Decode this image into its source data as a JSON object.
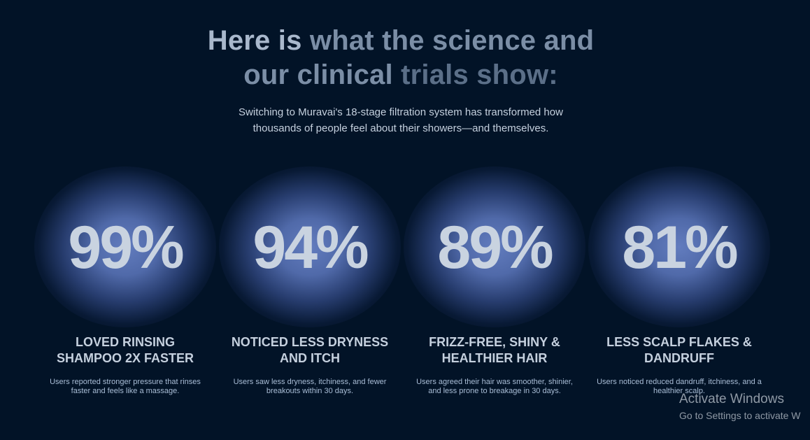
{
  "heading": {
    "line1_a": "Here is ",
    "line1_b": "what the science and",
    "line2_a": "our clinical ",
    "line2_b": "trials show:"
  },
  "subtitle": {
    "line1": "Switching to Muravai's 18-stage filtration system has transformed how",
    "line2": "thousands of people feel about their showers—and themselves."
  },
  "stats": [
    {
      "percent": "99%",
      "label_line1": "LOVED RINSING",
      "label_line2": "SHAMPOO 2X FASTER",
      "desc_line1": "Users reported stronger pressure that rinses",
      "desc_line2": "faster and feels like a massage."
    },
    {
      "percent": "94%",
      "label_line1": "NOTICED LESS DRYNESS",
      "label_line2": "AND ITCH",
      "desc_line1": "Users saw less dryness, itchiness, and fewer",
      "desc_line2": "breakouts within 30 days."
    },
    {
      "percent": "89%",
      "label_line1": "FRIZZ-FREE, SHINY &",
      "label_line2": "HEALTHIER HAIR",
      "desc_line1": "Users agreed their hair was smoother, shinier,",
      "desc_line2": "and less prone to breakage in 30 days."
    },
    {
      "percent": "81%",
      "label_line1": "LESS SCALP FLAKES &",
      "label_line2": "DANDRUFF",
      "desc_line1": "Users noticed reduced dandruff, itchiness, and a",
      "desc_line2": "healthier scalp."
    }
  ],
  "watermark": {
    "title": "Activate Windows",
    "subtitle": "Go to Settings to activate W"
  },
  "colors": {
    "background": "#021327",
    "glow": "#627cbe",
    "percent_text": "#c9d3e0"
  }
}
